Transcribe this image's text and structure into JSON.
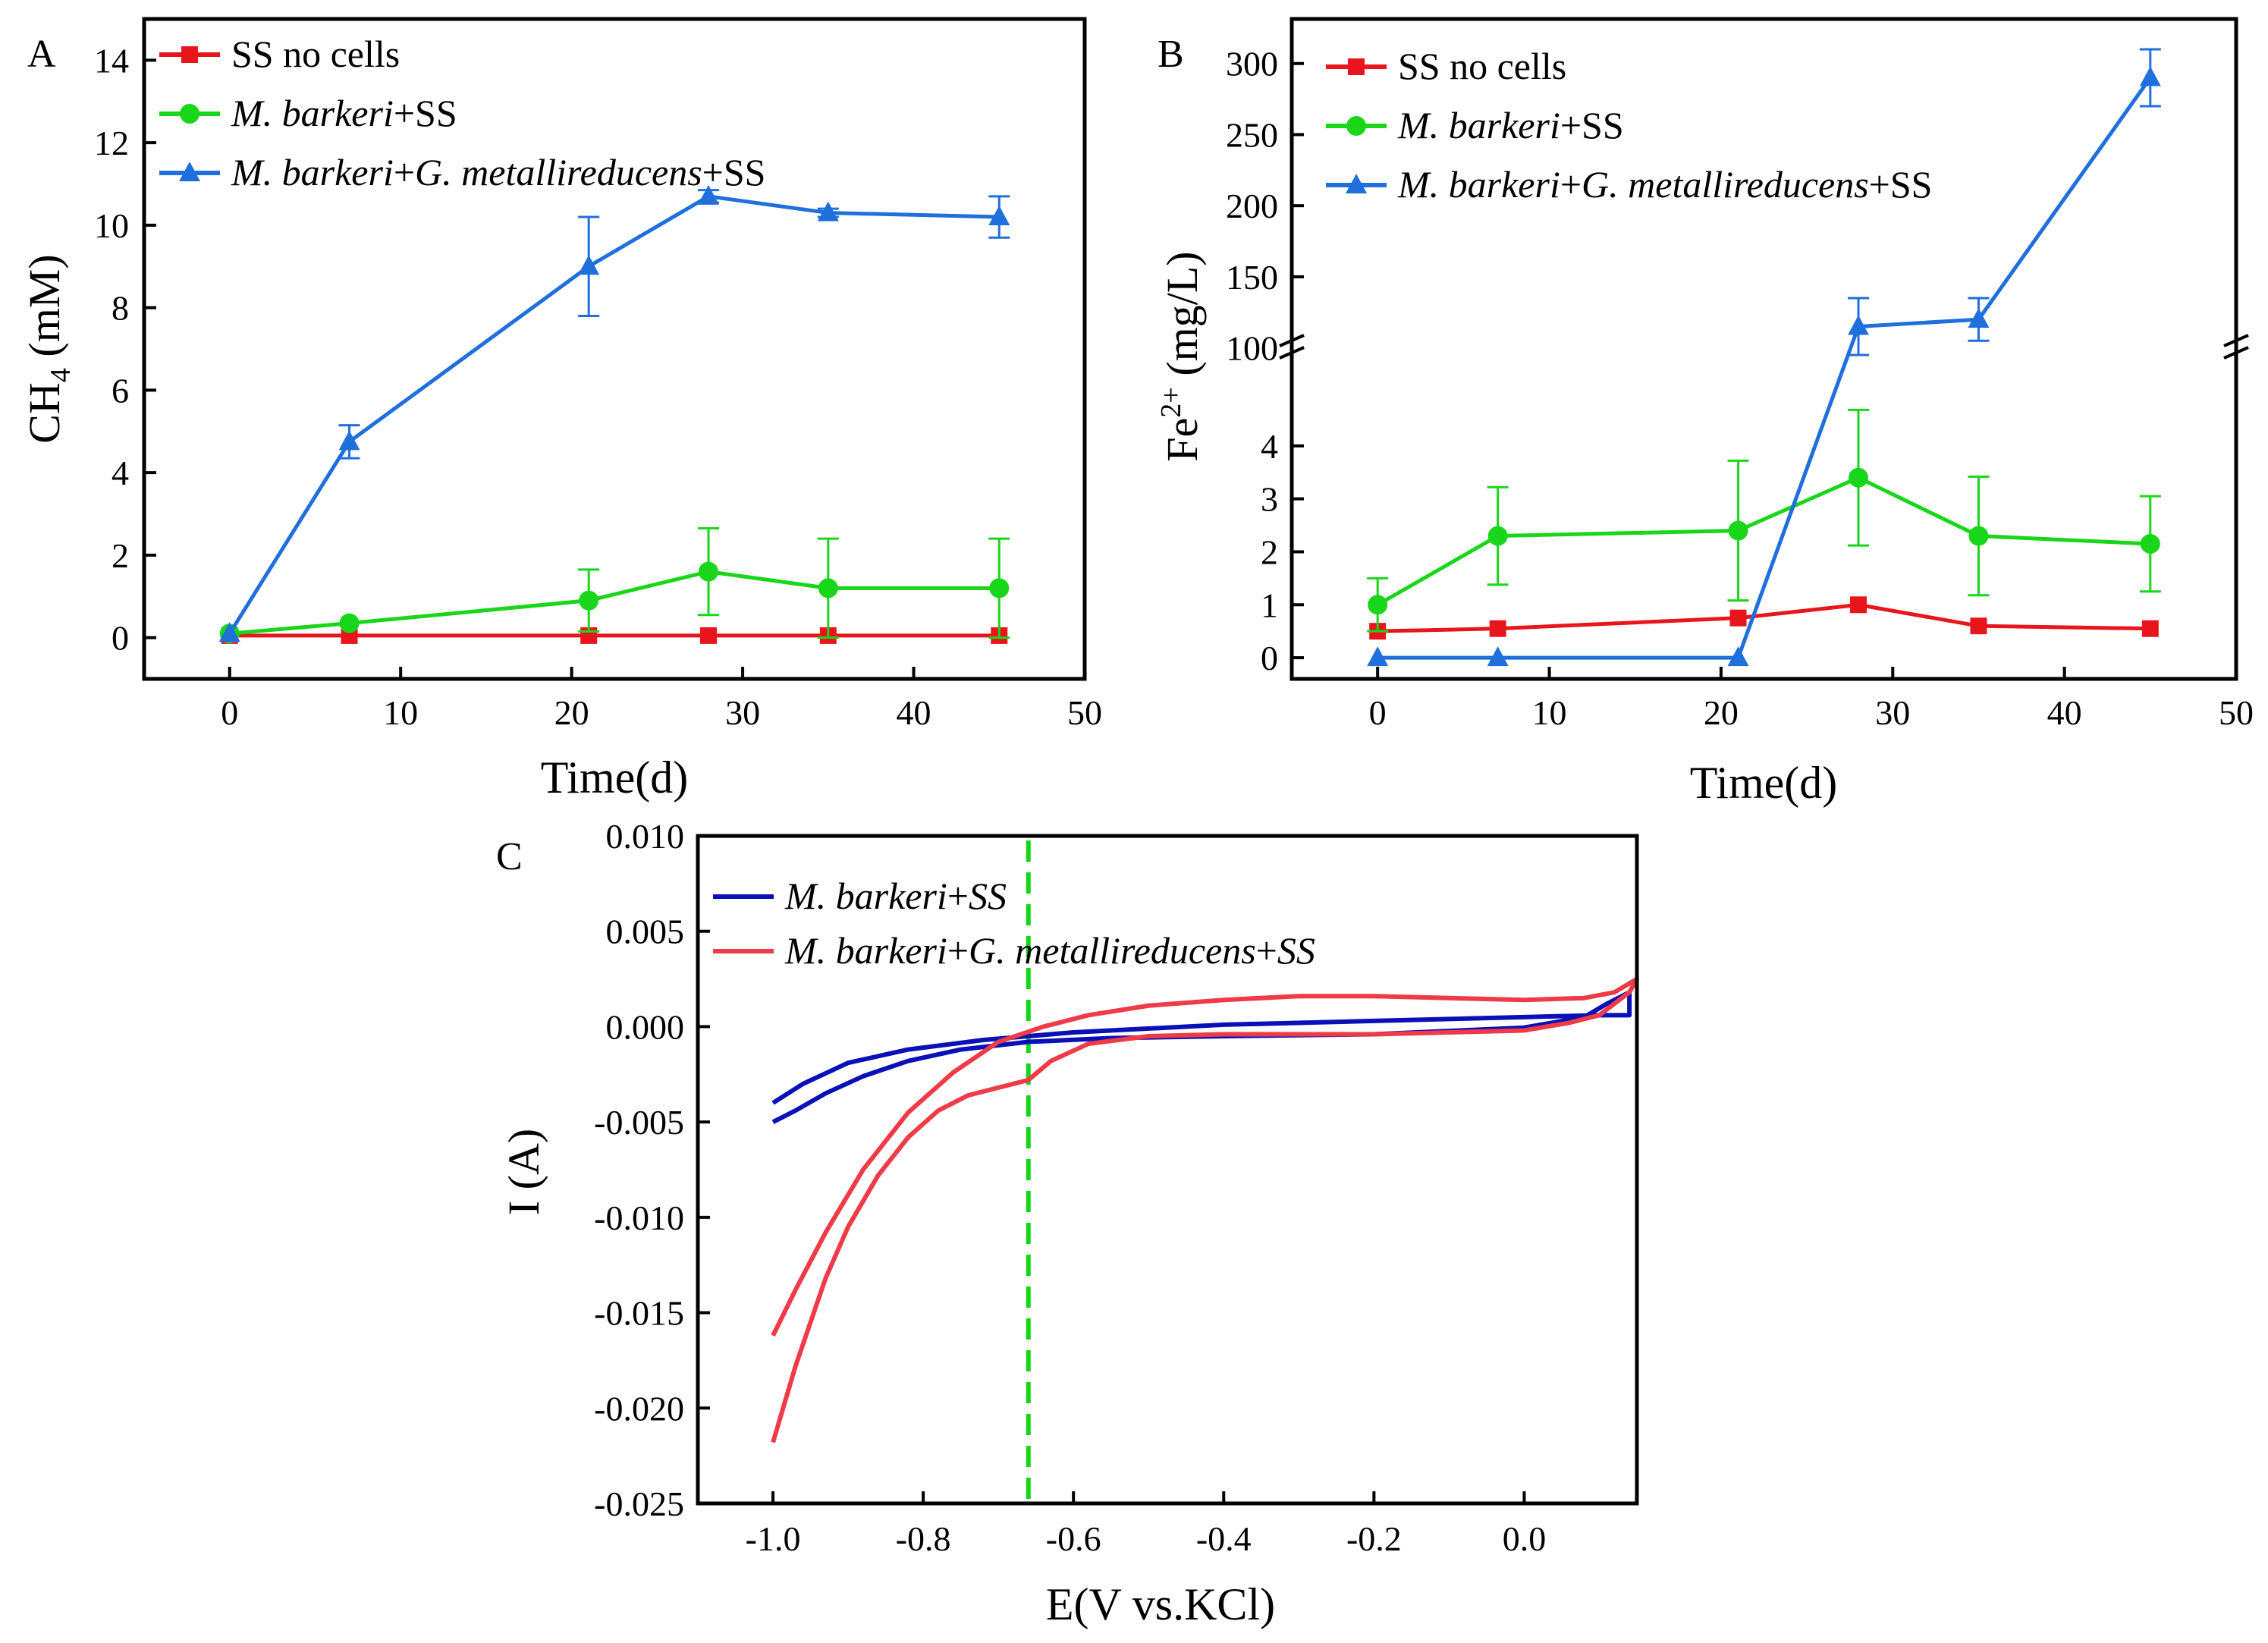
{
  "panels": {
    "a": "A",
    "b": "B",
    "c": "C"
  },
  "colors": {
    "red": "#e8161c",
    "green": "#1ad61a",
    "blue": "#1f6fdc",
    "cv_blue": "#0a10b8",
    "cv_red": "#ef3b47",
    "guide": "#16d416"
  },
  "chart_data": [
    {
      "id": "A",
      "type": "line",
      "title": "",
      "xlabel": "Time(d)",
      "ylabel_main": "CH",
      "ylabel_sub": "4",
      "ylabel_tail": " (mM)",
      "xlim": [
        -5,
        50
      ],
      "ylim": [
        -1,
        15
      ],
      "xticks": [
        0,
        10,
        20,
        30,
        40,
        50
      ],
      "yticks": [
        0,
        2,
        4,
        6,
        8,
        10,
        12,
        14
      ],
      "legend_position": "top-left",
      "series": [
        {
          "name_parts": [
            "SS no cells"
          ],
          "italic": [
            false
          ],
          "color_key": "red",
          "marker": "square",
          "x": [
            0,
            7,
            21,
            28,
            35,
            45
          ],
          "y": [
            0.05,
            0.05,
            0.05,
            0.05,
            0.05,
            0.05
          ],
          "err": [
            0,
            0,
            0,
            0,
            0,
            0
          ]
        },
        {
          "name_parts": [
            "M. barkeri",
            "+SS"
          ],
          "italic": [
            true,
            false
          ],
          "color_key": "green",
          "marker": "circle",
          "x": [
            0,
            7,
            21,
            28,
            35,
            45
          ],
          "y": [
            0.1,
            0.35,
            0.9,
            1.6,
            1.2,
            1.2
          ],
          "err": [
            0,
            0,
            0.75,
            1.05,
            1.2,
            1.2
          ]
        },
        {
          "name_parts": [
            "M. barkeri",
            "+",
            "G. metallireducens",
            "+SS"
          ],
          "italic": [
            true,
            false,
            true,
            false
          ],
          "color_key": "blue",
          "marker": "triangle",
          "x": [
            0,
            7,
            21,
            28,
            35,
            45
          ],
          "y": [
            0.1,
            4.75,
            9.0,
            10.7,
            10.3,
            10.2
          ],
          "err": [
            0,
            0.4,
            1.2,
            0.15,
            0.1,
            0.5
          ]
        }
      ]
    },
    {
      "id": "B",
      "type": "line",
      "title": "",
      "xlabel": "Time(d)",
      "ylabel_main": "Fe",
      "ylabel_sup": "2+",
      "ylabel_tail": " (mg/L)",
      "xlim": [
        -5,
        50
      ],
      "ylim_lower": [
        -0.4,
        4.9
      ],
      "ylim_upper": [
        95,
        310
      ],
      "axis_break": true,
      "xticks": [
        0,
        10,
        20,
        30,
        40,
        50
      ],
      "yticks_lower": [
        0,
        1,
        2,
        3,
        4
      ],
      "yticks_upper": [
        100,
        150,
        200,
        250,
        300
      ],
      "legend_position": "top-left",
      "series": [
        {
          "name_parts": [
            "SS no cells"
          ],
          "italic": [
            false
          ],
          "color_key": "red",
          "marker": "square",
          "x": [
            0,
            7,
            21,
            28,
            35,
            45
          ],
          "y": [
            0.5,
            0.55,
            0.75,
            1.0,
            0.6,
            0.55
          ],
          "err": [
            0,
            0,
            0,
            0,
            0,
            0
          ]
        },
        {
          "name_parts": [
            "M. barkeri",
            "+SS"
          ],
          "italic": [
            true,
            false
          ],
          "color_key": "green",
          "marker": "circle",
          "x": [
            0,
            7,
            21,
            28,
            35,
            45
          ],
          "y": [
            1.0,
            2.3,
            2.4,
            3.4,
            2.3,
            2.15
          ],
          "err": [
            0.5,
            0.92,
            1.32,
            1.28,
            1.12,
            0.9
          ]
        },
        {
          "name_parts": [
            "M. barkeri",
            "+",
            "G. metallireducens",
            "+SS"
          ],
          "italic": [
            true,
            false,
            true,
            false
          ],
          "color_key": "blue",
          "marker": "triangle",
          "x": [
            0,
            7,
            21,
            28,
            35,
            45
          ],
          "y": [
            0,
            0,
            0,
            115,
            120,
            290
          ],
          "err": [
            0,
            0,
            0,
            20,
            15,
            20
          ]
        }
      ]
    },
    {
      "id": "C",
      "type": "line",
      "title": "",
      "xlabel": "E(V vs.KCl)",
      "ylabel": "I (A)",
      "xlim": [
        -1.1,
        0.15
      ],
      "ylim": [
        -0.025,
        0.01
      ],
      "xticks": [
        "-1.0",
        "-0.8",
        "-0.6",
        "-0.4",
        "-0.2",
        "0.0"
      ],
      "yticks": [
        "0.010",
        "0.005",
        "0.000",
        "-0.005",
        "-0.010",
        "-0.015",
        "-0.020",
        "-0.025"
      ],
      "guide_line_x": -0.66,
      "legend_position": "top-left",
      "series": [
        {
          "name_parts": [
            "M. barkeri",
            "+",
            "SS"
          ],
          "italic": [
            true,
            false,
            true
          ],
          "color_key": "cv_blue",
          "x": [
            -1.0,
            -0.97,
            -0.93,
            -0.88,
            -0.82,
            -0.75,
            -0.66,
            -0.55,
            -0.4,
            -0.2,
            0.0,
            0.08,
            0.11,
            0.14,
            0.14,
            0.1,
            0.0,
            -0.2,
            -0.4,
            -0.6,
            -0.72,
            -0.82,
            -0.9,
            -0.96,
            -1.0
          ],
          "y": [
            -0.005,
            -0.0044,
            -0.0035,
            -0.0026,
            -0.0018,
            -0.0012,
            -0.0008,
            -0.0006,
            -0.0005,
            -0.0004,
            -5e-05,
            0.0005,
            0.0012,
            0.0018,
            0.0006,
            0.0006,
            0.0005,
            0.0003,
            0.0001,
            -0.0003,
            -0.0007,
            -0.0012,
            -0.0019,
            -0.003,
            -0.004
          ]
        },
        {
          "name_parts": [
            "M. barkeri",
            "+",
            "G. metallireducens",
            "+",
            "SS"
          ],
          "italic": [
            true,
            false,
            true,
            false,
            true
          ],
          "color_key": "cv_red",
          "x": [
            -1.0,
            -0.97,
            -0.93,
            -0.9,
            -0.86,
            -0.82,
            -0.78,
            -0.74,
            -0.7,
            -0.66,
            -0.63,
            -0.58,
            -0.5,
            -0.4,
            -0.2,
            0.0,
            0.06,
            0.1,
            0.12,
            0.14,
            0.15,
            0.12,
            0.08,
            0.0,
            -0.1,
            -0.2,
            -0.3,
            -0.4,
            -0.5,
            -0.58,
            -0.64,
            -0.7,
            -0.76,
            -0.82,
            -0.88,
            -0.93,
            -0.97,
            -1.0
          ],
          "y": [
            -0.0218,
            -0.0178,
            -0.0132,
            -0.0105,
            -0.0078,
            -0.0058,
            -0.0044,
            -0.0036,
            -0.0032,
            -0.0028,
            -0.0018,
            -0.0009,
            -0.0005,
            -0.0004,
            -0.0004,
            -0.0002,
            0.0002,
            0.0006,
            0.0012,
            0.0018,
            0.0025,
            0.0018,
            0.0015,
            0.0014,
            0.0015,
            0.0016,
            0.0016,
            0.0014,
            0.0011,
            0.0006,
            0.0,
            -0.0008,
            -0.0024,
            -0.0045,
            -0.0075,
            -0.0108,
            -0.0138,
            -0.0162
          ]
        }
      ]
    }
  ]
}
